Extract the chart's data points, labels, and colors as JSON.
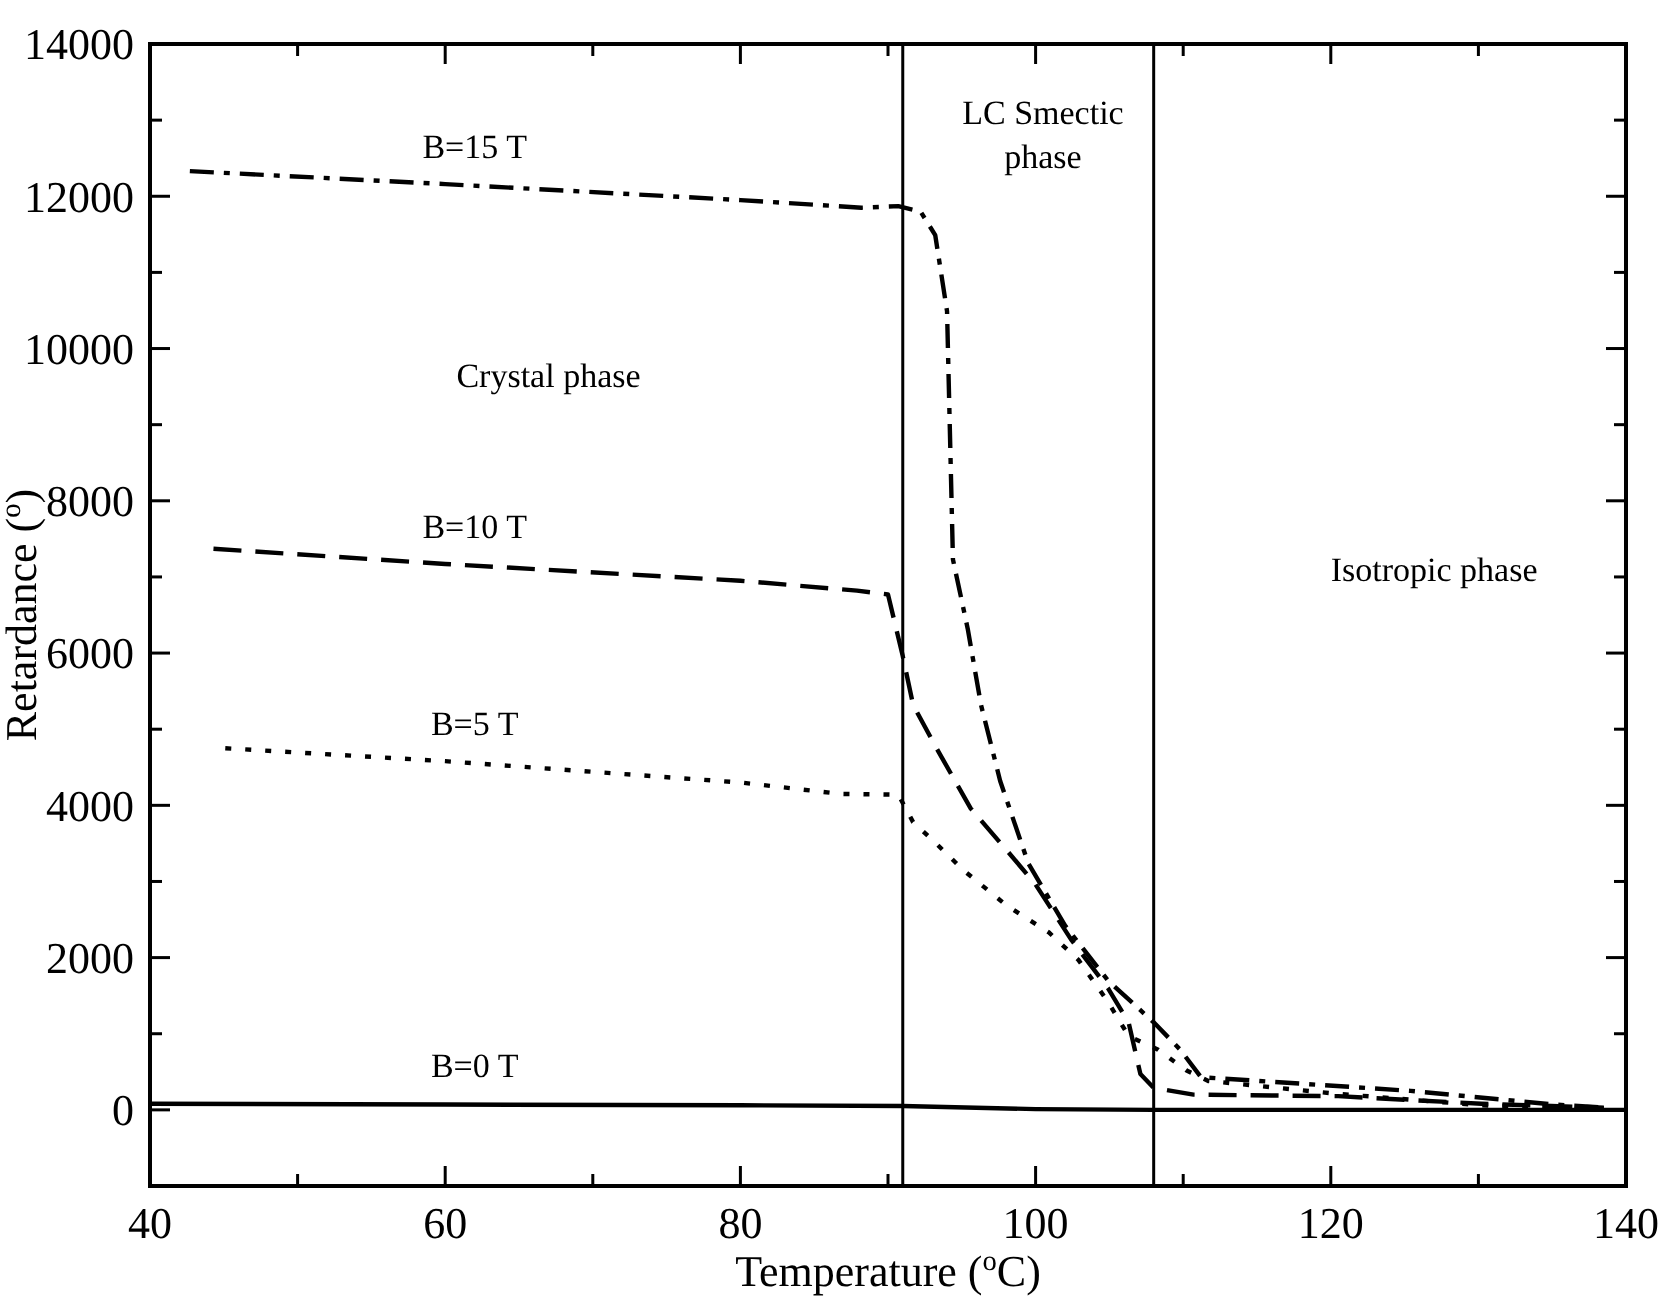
{
  "chart_data": {
    "type": "line",
    "xlabel": "Temperature ($^{o}$C)",
    "ylabel": "Retardance ($^{o}$)",
    "xlim": [
      40,
      140
    ],
    "ylim": [
      -1000,
      14000
    ],
    "xticks": [
      40,
      {
        "value": 50,
        "label": null
      },
      60,
      {
        "value": 70,
        "label": null
      },
      80,
      {
        "value": 90,
        "label": null
      },
      100,
      {
        "value": 110,
        "label": null
      },
      120,
      {
        "value": 130,
        "label": null
      },
      140
    ],
    "yticks": [
      {
        "value": -1000,
        "label": null
      },
      0,
      {
        "value": 1000,
        "label": null
      },
      2000,
      {
        "value": 3000,
        "label": null
      },
      4000,
      {
        "value": 5000,
        "label": null
      },
      6000,
      {
        "value": 7000,
        "label": null
      },
      8000,
      {
        "value": 9000,
        "label": null
      },
      10000,
      {
        "value": 11000,
        "label": null
      },
      12000,
      {
        "value": 13000,
        "label": null
      },
      14000
    ],
    "grid": false,
    "marker": "none",
    "series": [
      {
        "name": "B=15 T",
        "color": "#000000",
        "line_style": "dashdot",
        "x": [
          42.7,
          60,
          80,
          88.2,
          90.7,
          92.2,
          93.2,
          94.0,
          94.4,
          95.4,
          96.3,
          97.6,
          99.5,
          102,
          104.9,
          108,
          109.8,
          111.2,
          125.4,
          135.1,
          138.5
        ],
        "values": [
          12330,
          12160,
          11950,
          11850,
          11870,
          11800,
          11490,
          10490,
          7230,
          6320,
          5320,
          4320,
          3240,
          2420,
          1700,
          1150,
          790,
          430,
          250,
          70,
          30
        ]
      },
      {
        "name": "B=10 T",
        "color": "#000000",
        "line_style": "dashed",
        "x": [
          44.3,
          60,
          80,
          87.9,
          90,
          91,
          91.7,
          93.2,
          95.6,
          98,
          100,
          102.4,
          104.9,
          106.3,
          107.1,
          108,
          110.7,
          120.5,
          130.2,
          138.5
        ],
        "values": [
          7370,
          7170,
          6950,
          6820,
          6770,
          5960,
          5320,
          4780,
          3960,
          3420,
          2960,
          2240,
          1600,
          1150,
          470,
          290,
          200,
          180,
          80,
          30
        ]
      },
      {
        "name": "B=5 T",
        "color": "#000000",
        "line_style": "dotted",
        "x": [
          45.1,
          60,
          80,
          86.8,
          90.7,
          91.7,
          93.2,
          95.1,
          98,
          100.9,
          102.9,
          104.9,
          106.3,
          108.3,
          110.2,
          111.7,
          120.5,
          130.2,
          138.5
        ],
        "values": [
          4750,
          4580,
          4300,
          4150,
          4140,
          3780,
          3510,
          3150,
          2690,
          2330,
          1970,
          1420,
          970,
          790,
          520,
          380,
          210,
          60,
          20
        ]
      },
      {
        "name": "B=0 T",
        "color": "#000000",
        "line_style": "solid",
        "x": [
          40,
          60,
          80,
          91,
          100,
          108,
          120,
          140
        ],
        "values": [
          80,
          70,
          60,
          50,
          10,
          0,
          0,
          0
        ]
      }
    ],
    "ref_lines": [
      {
        "axis": "x",
        "value": 91,
        "color": "#000000"
      },
      {
        "axis": "x",
        "value": 108,
        "color": "#000000"
      }
    ],
    "annotations": [
      "Crystal phase",
      "LC Smectic phase",
      "Isotropic phase"
    ]
  }
}
